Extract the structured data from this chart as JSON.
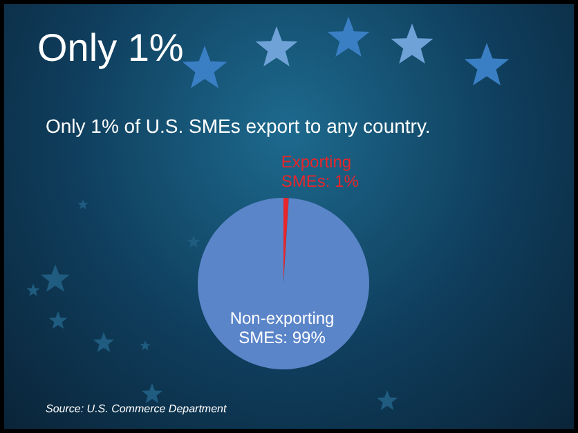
{
  "chart_data": {
    "type": "pie",
    "title": "Only 1%",
    "subtitle": "Only 1% of U.S. SMEs export to any country.",
    "categories": [
      "Exporting SMEs",
      "Non-exporting SMEs"
    ],
    "values": [
      1,
      99
    ],
    "colors": [
      "#e8262a",
      "#5b85c9"
    ],
    "value_labels": [
      "1%",
      "99%"
    ],
    "annotations": [
      "Source: U.S. Commerce Department"
    ]
  }
}
